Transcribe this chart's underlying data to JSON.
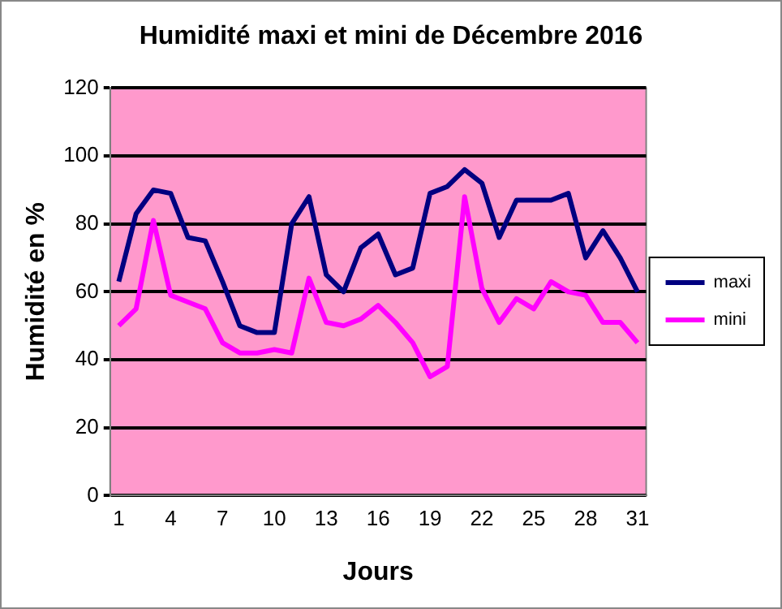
{
  "chart_data": {
    "type": "line",
    "title": "Humidité maxi et mini de Décembre 2016",
    "xlabel": "Jours",
    "ylabel": "Humidité en %",
    "categories": [
      "1",
      null,
      null,
      "4",
      null,
      null,
      "7",
      null,
      null,
      "10",
      null,
      null,
      "13",
      null,
      null,
      "16",
      null,
      null,
      "19",
      null,
      null,
      "22",
      null,
      null,
      "25",
      null,
      null,
      "28",
      null,
      null,
      "31"
    ],
    "series": [
      {
        "name": "maxi",
        "color": "#000080",
        "values": [
          63,
          83,
          90,
          89,
          76,
          75,
          63,
          50,
          48,
          48,
          80,
          88,
          65,
          60,
          73,
          77,
          65,
          67,
          89,
          91,
          96,
          92,
          76,
          87,
          87,
          87,
          89,
          70,
          78,
          70,
          60
        ]
      },
      {
        "name": "mini",
        "color": "#ff00ff",
        "values": [
          50,
          55,
          81,
          59,
          57,
          55,
          45,
          42,
          42,
          43,
          42,
          64,
          51,
          50,
          52,
          56,
          51,
          45,
          35,
          38,
          88,
          61,
          51,
          58,
          55,
          63,
          60,
          59,
          51,
          51,
          45
        ]
      }
    ],
    "ylim": [
      0,
      120
    ],
    "yticks": [
      0,
      20,
      40,
      60,
      80,
      100,
      120
    ],
    "grid": "y",
    "legend": "right",
    "marker": "none",
    "line_style": "solid"
  }
}
